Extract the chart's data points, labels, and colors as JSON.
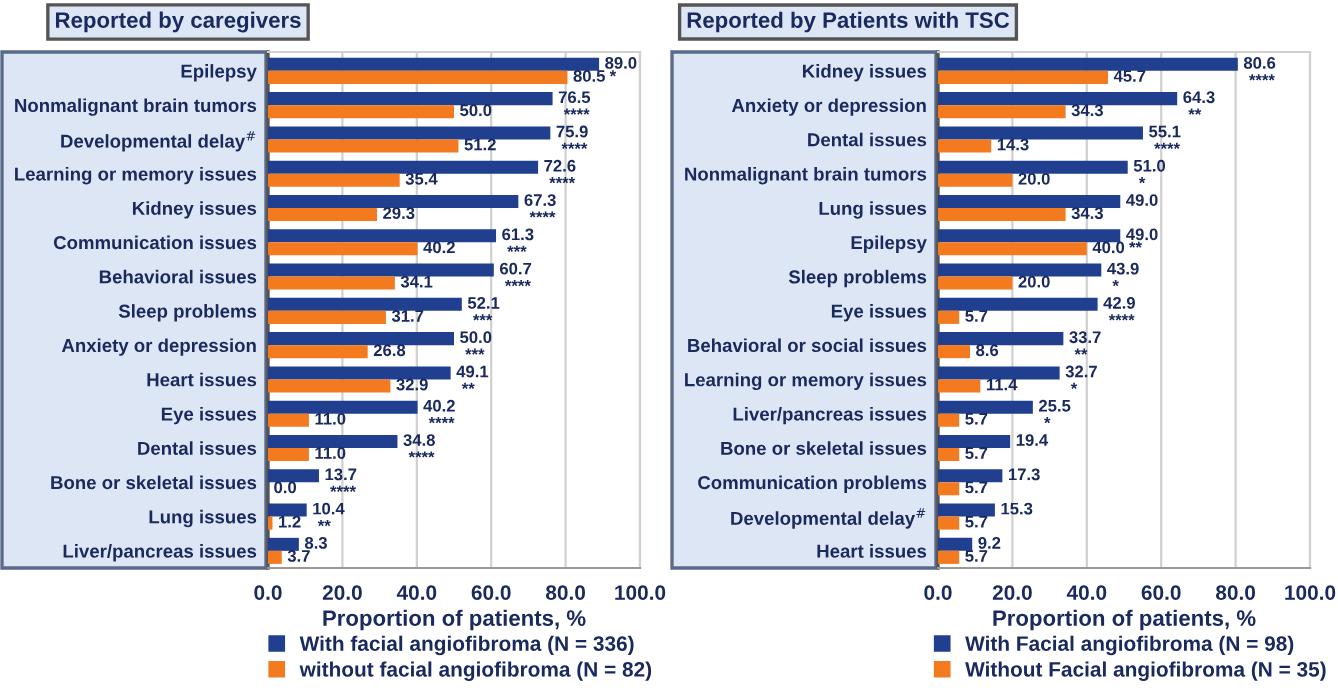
{
  "chart_data": [
    {
      "type": "bar",
      "orientation": "horizontal",
      "title": "Reported by caregivers",
      "xlabel": "Proportion of patients, %",
      "categories": [
        "Epilepsy",
        "Nonmalignant brain tumors",
        "Developmental delay$^{#}$",
        "Learning or memory issues",
        "Kidney issues",
        "Communication issues",
        "Behavioral issues",
        "Sleep problems",
        "Anxiety or depression",
        "Heart issues",
        "Eye issues",
        "Dental issues",
        "Bone or skeletal issues",
        "Lung issues",
        "Liver/pancreas issues"
      ],
      "series": [
        {
          "name": "With facial angiofibroma (N = 336)",
          "color": "#203f8f",
          "values": [
            89.0,
            76.5,
            75.9,
            72.6,
            67.3,
            61.3,
            60.7,
            52.1,
            50.0,
            49.1,
            40.2,
            34.8,
            13.7,
            10.4,
            8.3
          ],
          "value_labels": [
            "89.0",
            "76.5",
            "75.9",
            "72.6",
            "67.3",
            "61.3",
            "60.7",
            "52.1",
            "50.0",
            "49.1",
            "40.2",
            "34.8",
            "13.7",
            "10.4",
            "8.3"
          ]
        },
        {
          "name": "without facial angiofibroma (N = 82)",
          "color": "#f47a20",
          "values": [
            80.5,
            50.0,
            51.2,
            35.4,
            29.3,
            40.2,
            34.1,
            31.7,
            26.8,
            32.9,
            11.0,
            11.0,
            0.0,
            1.2,
            3.7
          ],
          "value_labels": [
            "80.5",
            "50.0",
            "51.2",
            "35.4",
            "29.3",
            "40.2",
            "34.1",
            "31.7",
            "26.8",
            "32.9",
            "11.0",
            "11.0",
            "0.0",
            "1.2",
            "3.7"
          ]
        }
      ],
      "xlim": [
        0,
        100
      ],
      "xticks": [
        {
          "value": 0,
          "label": "0.0"
        },
        {
          "value": 20,
          "label": "20.0"
        },
        {
          "value": 40,
          "label": "40.0"
        },
        {
          "value": 60,
          "label": "60.0"
        },
        {
          "value": 80,
          "label": "80.0"
        },
        {
          "value": 100,
          "label": "100.0"
        }
      ],
      "grid": "x",
      "legend": "bottom",
      "annotations": [
        {
          "text": "*",
          "x": 80.5,
          "y": "Epilepsy"
        },
        {
          "text": "****",
          "x": 76.5,
          "y": "Nonmalignant brain tumors"
        },
        {
          "text": "****",
          "x": 75.9,
          "y": "Developmental delay$^{#}$"
        },
        {
          "text": "****",
          "x": 72.6,
          "y": "Learning or memory issues"
        },
        {
          "text": "****",
          "x": 67.3,
          "y": "Kidney issues"
        },
        {
          "text": "***",
          "x": 61.3,
          "y": "Communication issues"
        },
        {
          "text": "****",
          "x": 60.7,
          "y": "Behavioral issues"
        },
        {
          "text": "***",
          "x": 52.1,
          "y": "Sleep problems"
        },
        {
          "text": "***",
          "x": 50.0,
          "y": "Anxiety or depression"
        },
        {
          "text": "**",
          "x": 49.1,
          "y": "Heart issues"
        },
        {
          "text": "****",
          "x": 40.2,
          "y": "Eye issues"
        },
        {
          "text": "****",
          "x": 34.8,
          "y": "Dental issues"
        },
        {
          "text": "****",
          "x": 13.7,
          "y": "Bone or skeletal issues"
        },
        {
          "text": "**",
          "x": 10.4,
          "y": "Lung issues"
        }
      ]
    },
    {
      "type": "bar",
      "orientation": "horizontal",
      "title": "Reported by Patients with TSC",
      "xlabel": "Proportion of patients, %",
      "categories": [
        "Kidney issues",
        "Anxiety or depression",
        "Dental issues",
        "Nonmalignant brain tumors",
        "Lung issues",
        "Epilepsy",
        "Sleep problems",
        "Eye issues",
        "Behavioral or social issues",
        "Learning or memory issues",
        "Liver/pancreas issues",
        "Bone or skeletal issues",
        "Communication problems",
        "Developmental delay$^{#}$",
        "Heart issues"
      ],
      "series": [
        {
          "name": "With Facial angiofibroma (N = 98)",
          "color": "#203f8f",
          "values": [
            80.6,
            64.3,
            55.1,
            51.0,
            49.0,
            49.0,
            43.9,
            42.9,
            33.7,
            32.7,
            25.5,
            19.4,
            17.3,
            15.3,
            9.2
          ],
          "value_labels": [
            "80.6",
            "64.3",
            "55.1",
            "51.0",
            "49.0",
            "49.0",
            "43.9",
            "42.9",
            "33.7",
            "32.7",
            "25.5",
            "19.4",
            "17.3",
            "15.3",
            "9.2"
          ]
        },
        {
          "name": "Without Facial angiofibroma (N = 35)",
          "color": "#f47a20",
          "values": [
            45.7,
            34.3,
            14.3,
            20.0,
            34.3,
            40.0,
            20.0,
            5.7,
            8.6,
            11.4,
            5.7,
            5.7,
            5.7,
            5.7,
            5.7
          ],
          "value_labels": [
            "45.7",
            "34.3",
            "14.3",
            "20.0",
            "34.3",
            "40.0",
            "20.0",
            "5.7",
            "8.6",
            "11.4",
            "5.7",
            "5.7",
            "5.7",
            "5.7",
            "5.7"
          ]
        }
      ],
      "xlim": [
        0,
        100
      ],
      "xticks": [
        {
          "value": 0,
          "label": "0.0"
        },
        {
          "value": 20,
          "label": "20.0"
        },
        {
          "value": 40,
          "label": "40.0"
        },
        {
          "value": 60,
          "label": "60.0"
        },
        {
          "value": 80,
          "label": "80.0"
        },
        {
          "value": 100,
          "label": "100.0"
        }
      ],
      "grid": "x",
      "legend": "bottom",
      "annotations": [
        {
          "text": "****",
          "x": 80.6,
          "y": "Kidney issues"
        },
        {
          "text": "**",
          "x": 64.3,
          "y": "Anxiety or depression"
        },
        {
          "text": "****",
          "x": 55.1,
          "y": "Dental issues"
        },
        {
          "text": "*",
          "x": 51.0,
          "y": "Nonmalignant brain tumors"
        },
        {
          "text": "**",
          "x": 40.0,
          "y": "Epilepsy"
        },
        {
          "text": "*",
          "x": 43.9,
          "y": "Sleep problems"
        },
        {
          "text": "****",
          "x": 42.9,
          "y": "Eye issues"
        },
        {
          "text": "**",
          "x": 33.7,
          "y": "Behavioral or social issues"
        },
        {
          "text": "*",
          "x": 32.7,
          "y": "Learning or memory issues"
        },
        {
          "text": "*",
          "x": 25.5,
          "y": "Liver/pancreas issues"
        }
      ]
    }
  ]
}
